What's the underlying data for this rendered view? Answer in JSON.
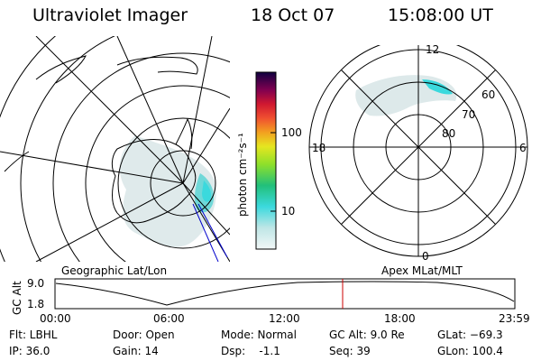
{
  "header": {
    "instrument": "Ultraviolet Imager",
    "date": "18 Oct 07",
    "time": "15:08:00 UT"
  },
  "colorbar": {
    "label": "photon cm⁻²s⁻¹",
    "ticks": [
      "100",
      "10"
    ]
  },
  "geo_panel": {
    "caption": "Geographic Lat/Lon"
  },
  "polar_panel": {
    "caption": "Apex MLat/MLT",
    "mlt_labels": [
      "12",
      "18",
      "6",
      "0"
    ],
    "mlat_labels": [
      "60",
      "70",
      "80"
    ]
  },
  "altitude_plot": {
    "ylabel": "GC Alt",
    "yticks": [
      "9.0",
      "1.8"
    ],
    "xticks": [
      "00:00",
      "06:00",
      "12:00",
      "18:00",
      "23:59"
    ]
  },
  "status": {
    "filter_label": "Flt: LBHL",
    "ip_label": "IP: 36.0",
    "door_label": "Door: Open",
    "gain_label": "Gain: 14",
    "mode_label": "Mode: Normal",
    "dsp_label": "Dsp:    -1.1",
    "gcalt_label": "GC Alt: 9.0 Re",
    "seq_label": "Seq: 39",
    "glat_label": "GLat: −69.3",
    "glon_label": "GLon: 100.4"
  },
  "colors": {
    "marker": "#cc0000",
    "aurora_low": "#dde9ea",
    "aurora_high": "#3bd9dd"
  }
}
